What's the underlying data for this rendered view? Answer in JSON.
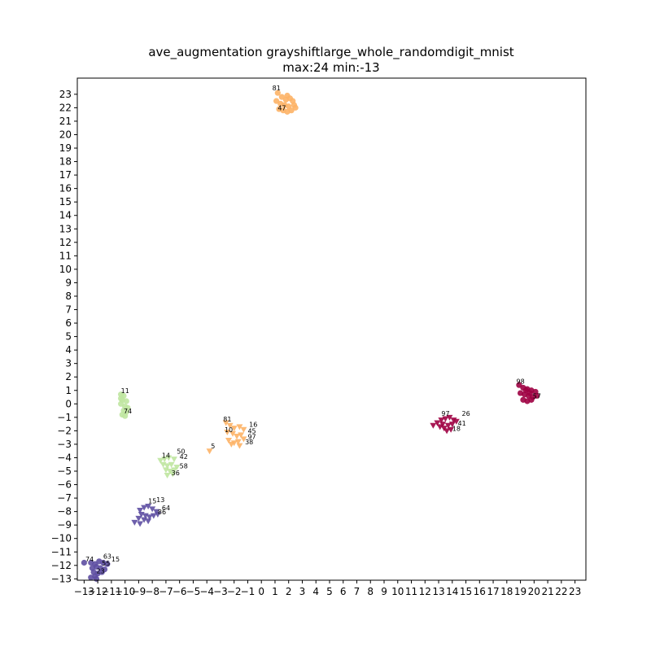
{
  "chart_data": {
    "type": "scatter",
    "title": "ave_augmentation grayshiftlarge_whole_randomdigit_mnist",
    "subtitle": "max:24 min:-13",
    "xlabel": "",
    "ylabel": "",
    "xlim": [
      -13.5,
      23.8
    ],
    "ylim": [
      -13.1,
      24.2
    ],
    "xticks": [
      -13,
      -12,
      -11,
      -10,
      -9,
      -8,
      -7,
      -6,
      -5,
      -4,
      -3,
      -2,
      -1,
      0,
      1,
      2,
      3,
      4,
      5,
      6,
      7,
      8,
      9,
      10,
      11,
      12,
      13,
      14,
      15,
      16,
      17,
      18,
      19,
      20,
      21,
      22,
      23
    ],
    "yticks": [
      -13,
      -12,
      -11,
      -10,
      -9,
      -8,
      -7,
      -6,
      -5,
      -4,
      -3,
      -2,
      -1,
      0,
      1,
      2,
      3,
      4,
      5,
      6,
      7,
      8,
      9,
      10,
      11,
      12,
      13,
      14,
      15,
      16,
      17,
      18,
      19,
      20,
      21,
      22,
      23
    ],
    "grid": false,
    "legend": "none",
    "clusters": [
      {
        "color": "#fdb366",
        "marker": "circle",
        "center": [
          1.8,
          22.4
        ],
        "points": [
          [
            1.2,
            23.1
          ],
          [
            1.5,
            22.8
          ],
          [
            1.9,
            22.9
          ],
          [
            2.1,
            22.7
          ],
          [
            2.3,
            22.5
          ],
          [
            1.4,
            22.3
          ],
          [
            1.7,
            22.2
          ],
          [
            2.0,
            22.1
          ],
          [
            2.4,
            22.2
          ],
          [
            1.3,
            21.9
          ],
          [
            1.6,
            21.8
          ],
          [
            1.9,
            21.7
          ],
          [
            2.2,
            21.8
          ],
          [
            1.1,
            22.5
          ],
          [
            2.5,
            22.0
          ],
          [
            1.8,
            22.6
          ]
        ],
        "labels": [
          {
            "x": 0.8,
            "y": 23.3,
            "text": "81"
          },
          {
            "x": 1.2,
            "y": 21.8,
            "text": "47"
          }
        ]
      },
      {
        "color": "#9e0142",
        "marker": "circle",
        "center": [
          19.6,
          0.8
        ],
        "points": [
          [
            18.9,
            1.4
          ],
          [
            19.2,
            1.2
          ],
          [
            19.5,
            1.1
          ],
          [
            19.8,
            1.0
          ],
          [
            20.1,
            0.9
          ],
          [
            19.0,
            0.8
          ],
          [
            19.3,
            0.7
          ],
          [
            19.6,
            0.6
          ],
          [
            19.9,
            0.5
          ],
          [
            19.2,
            0.3
          ],
          [
            19.5,
            0.2
          ],
          [
            19.8,
            0.3
          ],
          [
            20.2,
            0.6
          ],
          [
            19.4,
            1.0
          ],
          [
            19.7,
            0.8
          ]
        ],
        "labels": [
          {
            "x": 18.7,
            "y": 1.5,
            "text": "98"
          },
          {
            "x": 19.9,
            "y": 0.4,
            "text": "57"
          }
        ]
      },
      {
        "color": "#9e0142",
        "marker": "triangle_down",
        "center": [
          13.6,
          -1.5
        ],
        "points": [
          [
            12.6,
            -1.6
          ],
          [
            12.9,
            -1.4
          ],
          [
            13.2,
            -1.2
          ],
          [
            13.5,
            -1.1
          ],
          [
            13.8,
            -1.0
          ],
          [
            14.1,
            -1.2
          ],
          [
            13.1,
            -1.7
          ],
          [
            13.4,
            -1.8
          ],
          [
            13.7,
            -1.6
          ],
          [
            14.0,
            -1.5
          ],
          [
            13.6,
            -2.0
          ],
          [
            13.9,
            -1.9
          ],
          [
            14.3,
            -1.3
          ],
          [
            13.3,
            -1.5
          ]
        ],
        "labels": [
          {
            "x": 13.2,
            "y": -0.9,
            "text": "97"
          },
          {
            "x": 14.7,
            "y": -0.9,
            "text": "26"
          },
          {
            "x": 14.4,
            "y": -1.6,
            "text": "41"
          },
          {
            "x": 14.0,
            "y": -2.0,
            "text": "18"
          }
        ]
      },
      {
        "color": "#fdb366",
        "marker": "triangle_down",
        "center": [
          -1.8,
          -2.3
        ],
        "points": [
          [
            -2.6,
            -1.4
          ],
          [
            -2.3,
            -1.6
          ],
          [
            -2.0,
            -1.8
          ],
          [
            -1.6,
            -1.7
          ],
          [
            -1.3,
            -1.9
          ],
          [
            -2.5,
            -2.1
          ],
          [
            -2.1,
            -2.2
          ],
          [
            -1.8,
            -2.4
          ],
          [
            -1.5,
            -2.3
          ],
          [
            -2.4,
            -2.7
          ],
          [
            -2.0,
            -2.9
          ],
          [
            -1.7,
            -2.8
          ],
          [
            -1.3,
            -2.6
          ],
          [
            -2.2,
            -3.0
          ],
          [
            -1.6,
            -3.1
          ],
          [
            -3.8,
            -3.5
          ]
        ],
        "labels": [
          {
            "x": -2.8,
            "y": -1.3,
            "text": "81"
          },
          {
            "x": -0.9,
            "y": -1.7,
            "text": "16"
          },
          {
            "x": -2.7,
            "y": -2.1,
            "text": "10"
          },
          {
            "x": -1.0,
            "y": -2.2,
            "text": "45"
          },
          {
            "x": -1.0,
            "y": -2.6,
            "text": "97"
          },
          {
            "x": -1.2,
            "y": -3.0,
            "text": "38"
          },
          {
            "x": -3.7,
            "y": -3.3,
            "text": "5"
          }
        ]
      },
      {
        "color": "#bfe5a0",
        "marker": "circle",
        "center": [
          -10.0,
          0.0
        ],
        "points": [
          [
            -10.3,
            0.7
          ],
          [
            -10.1,
            0.6
          ],
          [
            -10.2,
            0.3
          ],
          [
            -9.9,
            0.2
          ],
          [
            -10.3,
            0.0
          ],
          [
            -10.0,
            -0.2
          ],
          [
            -9.8,
            -0.3
          ],
          [
            -10.1,
            -0.5
          ],
          [
            -9.9,
            -0.6
          ],
          [
            -10.2,
            -0.8
          ],
          [
            -10.0,
            -0.9
          ],
          [
            -10.3,
            0.4
          ]
        ],
        "labels": [
          {
            "x": -10.3,
            "y": 0.8,
            "text": "11"
          },
          {
            "x": -10.1,
            "y": -0.7,
            "text": "74"
          }
        ]
      },
      {
        "color": "#bfe5a0",
        "marker": "triangle_down",
        "center": [
          -6.7,
          -4.7
        ],
        "points": [
          [
            -7.4,
            -4.2
          ],
          [
            -7.1,
            -4.1
          ],
          [
            -6.8,
            -4.0
          ],
          [
            -6.4,
            -4.1
          ],
          [
            -7.2,
            -4.5
          ],
          [
            -6.9,
            -4.6
          ],
          [
            -6.6,
            -4.5
          ],
          [
            -6.2,
            -4.7
          ],
          [
            -7.0,
            -4.9
          ],
          [
            -6.7,
            -5.0
          ],
          [
            -6.4,
            -4.9
          ],
          [
            -6.9,
            -5.3
          ],
          [
            -6.5,
            -5.2
          ]
        ],
        "labels": [
          {
            "x": -7.3,
            "y": -4.0,
            "text": "14"
          },
          {
            "x": -6.2,
            "y": -3.7,
            "text": "50"
          },
          {
            "x": -6.0,
            "y": -4.1,
            "text": "42"
          },
          {
            "x": -6.0,
            "y": -4.8,
            "text": "58"
          },
          {
            "x": -6.6,
            "y": -5.3,
            "text": "36"
          }
        ]
      },
      {
        "color": "#5e4fa2",
        "marker": "triangle_down",
        "center": [
          -8.2,
          -8.2
        ],
        "points": [
          [
            -8.9,
            -7.9
          ],
          [
            -8.6,
            -7.7
          ],
          [
            -8.3,
            -7.6
          ],
          [
            -8.0,
            -7.8
          ],
          [
            -7.7,
            -8.0
          ],
          [
            -8.8,
            -8.2
          ],
          [
            -8.5,
            -8.3
          ],
          [
            -8.2,
            -8.4
          ],
          [
            -7.9,
            -8.3
          ],
          [
            -7.6,
            -8.2
          ],
          [
            -9.0,
            -8.5
          ],
          [
            -8.6,
            -8.6
          ],
          [
            -8.3,
            -8.7
          ],
          [
            -9.3,
            -8.8
          ],
          [
            -8.9,
            -8.9
          ]
        ],
        "labels": [
          {
            "x": -8.3,
            "y": -7.4,
            "text": "15"
          },
          {
            "x": -7.7,
            "y": -7.3,
            "text": "13"
          },
          {
            "x": -7.3,
            "y": -7.9,
            "text": "64"
          },
          {
            "x": -7.6,
            "y": -8.2,
            "text": "86"
          }
        ]
      },
      {
        "color": "#5e4fa2",
        "marker": "circle",
        "center": [
          -11.7,
          -12.1
        ],
        "points": [
          [
            -12.5,
            -11.8
          ],
          [
            -12.2,
            -11.9
          ],
          [
            -11.9,
            -11.7
          ],
          [
            -11.6,
            -11.8
          ],
          [
            -11.3,
            -11.9
          ],
          [
            -12.4,
            -12.2
          ],
          [
            -12.1,
            -12.1
          ],
          [
            -11.8,
            -12.2
          ],
          [
            -11.5,
            -12.3
          ],
          [
            -12.3,
            -12.5
          ],
          [
            -12.0,
            -12.6
          ],
          [
            -11.7,
            -12.5
          ],
          [
            -12.2,
            -12.8
          ],
          [
            -12.5,
            -12.9
          ],
          [
            -12.1,
            -13.0
          ],
          [
            -13.0,
            -11.8
          ]
        ],
        "labels": [
          {
            "x": -12.9,
            "y": -11.7,
            "text": "74"
          },
          {
            "x": -11.6,
            "y": -11.5,
            "text": "63"
          },
          {
            "x": -11.0,
            "y": -11.7,
            "text": "15"
          },
          {
            "x": -11.7,
            "y": -12.0,
            "text": "55"
          },
          {
            "x": -12.1,
            "y": -12.6,
            "text": "23"
          }
        ]
      }
    ]
  }
}
